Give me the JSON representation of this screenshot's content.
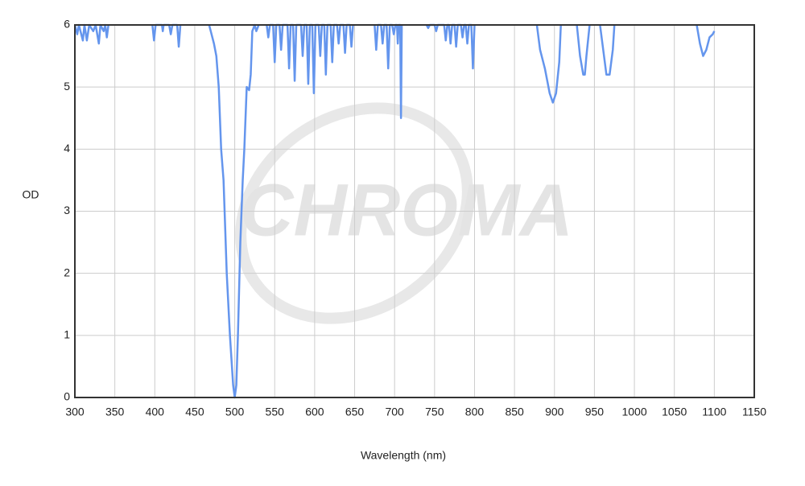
{
  "chart_data": {
    "type": "line",
    "watermark": "CHROMA",
    "xlabel": "Wavelength (nm)",
    "ylabel": "OD",
    "color": "#6495ed",
    "grid": true,
    "xlim": [
      300,
      1150
    ],
    "xticks": [
      300,
      350,
      400,
      450,
      500,
      550,
      600,
      650,
      700,
      750,
      800,
      850,
      900,
      950,
      1000,
      1050,
      1100,
      1150
    ],
    "ylim": [
      0,
      6
    ],
    "yticks": [
      0,
      1,
      2,
      3,
      4,
      5,
      6
    ],
    "x": [
      300,
      303,
      305,
      310,
      312,
      315,
      318,
      323,
      326,
      330,
      332,
      336,
      338,
      340,
      342,
      370,
      397,
      399,
      401,
      409,
      410,
      411,
      418,
      420,
      422,
      428,
      430,
      432,
      450,
      468,
      474,
      477,
      480,
      483,
      486,
      490,
      494,
      498,
      500,
      502,
      504,
      507,
      510,
      512,
      515,
      518,
      520,
      522,
      525,
      527,
      530,
      535,
      540,
      542,
      544,
      548,
      550,
      552,
      556,
      558,
      560,
      566,
      568,
      570,
      573,
      575,
      577,
      583,
      585,
      587,
      590,
      592,
      594,
      597,
      599,
      601,
      605,
      607,
      609,
      612,
      614,
      616,
      620,
      622,
      624,
      628,
      630,
      632,
      636,
      638,
      640,
      644,
      646,
      648,
      660,
      675,
      677,
      679,
      683,
      685,
      687,
      690,
      692,
      694,
      697,
      699,
      701,
      703,
      704,
      705,
      707,
      708,
      709,
      720,
      740,
      742,
      744,
      750,
      752,
      754,
      762,
      764,
      766,
      768,
      770,
      772,
      775,
      777,
      779,
      783,
      785,
      787,
      789,
      791,
      793,
      796,
      798,
      800,
      840,
      878,
      882,
      888,
      894,
      898,
      902,
      906,
      908,
      918,
      928,
      932,
      936,
      938,
      940,
      944,
      950,
      957,
      961,
      965,
      969,
      973,
      975,
      1020,
      1078,
      1082,
      1086,
      1090,
      1094,
      1098,
      1100
    ],
    "values": [
      6,
      5.85,
      6,
      5.75,
      6,
      5.75,
      6,
      5.9,
      6,
      5.7,
      6,
      5.9,
      6,
      5.8,
      6,
      null,
      6,
      5.75,
      6,
      6,
      5.9,
      6,
      6,
      5.85,
      6,
      6,
      5.65,
      6,
      null,
      6,
      5.7,
      5.5,
      5.0,
      4.0,
      3.5,
      2.0,
      1.0,
      0.2,
      0,
      0.2,
      1.0,
      2.5,
      3.5,
      4.0,
      5.0,
      4.95,
      5.2,
      5.9,
      6,
      5.9,
      6,
      null,
      6,
      5.8,
      6,
      6,
      5.4,
      6,
      6,
      5.6,
      6,
      6,
      5.3,
      6,
      6,
      5.1,
      6,
      6,
      5.5,
      6,
      6,
      5.05,
      6,
      6,
      4.9,
      6,
      6,
      5.5,
      6,
      6,
      5.2,
      6,
      6,
      5.4,
      6,
      6,
      5.7,
      6,
      6,
      5.55,
      6,
      6,
      5.65,
      6,
      null,
      6,
      5.6,
      6,
      6,
      5.7,
      6,
      6,
      5.3,
      6,
      6,
      5.85,
      6,
      6,
      5.7,
      6,
      6,
      4.5,
      6,
      null,
      6,
      5.95,
      6,
      6,
      5.9,
      6,
      6,
      5.75,
      6,
      6,
      5.7,
      6,
      6,
      5.65,
      6,
      6,
      5.8,
      6,
      6,
      5.7,
      6,
      6,
      5.3,
      6,
      null,
      6,
      5.6,
      5.3,
      4.9,
      4.75,
      4.9,
      5.4,
      6,
      null,
      6,
      5.5,
      5.2,
      5.2,
      5.5,
      6,
      null,
      6,
      5.6,
      5.2,
      5.2,
      5.6,
      6,
      null,
      6,
      5.7,
      5.5,
      5.6,
      5.8,
      5.85,
      5.9
    ]
  }
}
